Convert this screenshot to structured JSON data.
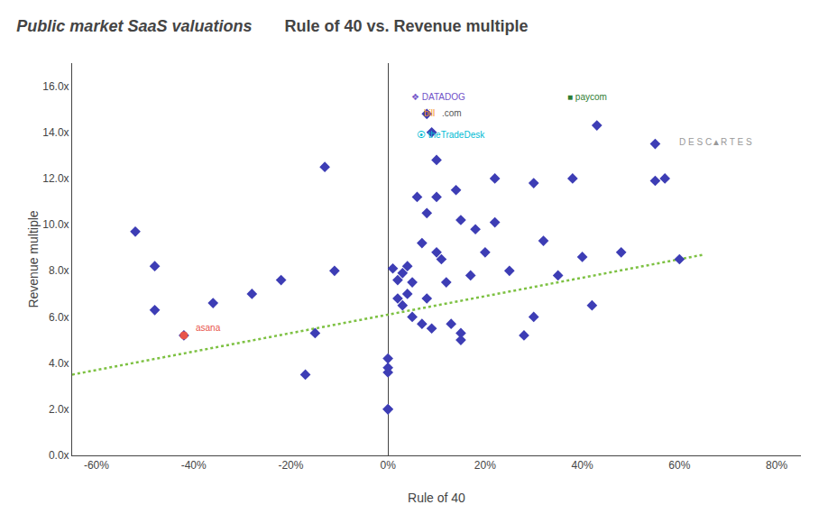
{
  "chart_data": {
    "type": "scatter",
    "title": "Public market SaaS valuations",
    "subtitle": "Rule of 40 vs. Revenue multiple",
    "xlabel": "Rule of 40",
    "ylabel": "Revenue multiple",
    "xlim": [
      -0.65,
      0.85
    ],
    "ylim": [
      0,
      17
    ],
    "xticks": [
      {
        "value": -0.6,
        "label": "-60%"
      },
      {
        "value": -0.4,
        "label": "-40%"
      },
      {
        "value": -0.2,
        "label": "-20%"
      },
      {
        "value": 0.0,
        "label": "0%"
      },
      {
        "value": 0.2,
        "label": "20%"
      },
      {
        "value": 0.4,
        "label": "40%"
      },
      {
        "value": 0.6,
        "label": "60%"
      },
      {
        "value": 0.8,
        "label": "80%"
      }
    ],
    "yticks": [
      {
        "value": 0,
        "label": "0.0x"
      },
      {
        "value": 2,
        "label": "2.0x"
      },
      {
        "value": 4,
        "label": "4.0x"
      },
      {
        "value": 6,
        "label": "6.0x"
      },
      {
        "value": 8,
        "label": "8.0x"
      },
      {
        "value": 10,
        "label": "10.0x"
      },
      {
        "value": 12,
        "label": "12.0x"
      },
      {
        "value": 14,
        "label": "14.0x"
      },
      {
        "value": 16,
        "label": "16.0x"
      }
    ],
    "grid": false,
    "series": [
      {
        "type": "scatter",
        "color": "#3d3db5",
        "marker": "diamond",
        "x": [
          -0.52,
          -0.48,
          -0.48,
          -0.42,
          -0.36,
          -0.28,
          -0.22,
          -0.17,
          -0.15,
          -0.13,
          -0.11,
          0.0,
          0.0,
          0.0,
          0.0,
          0.0,
          0.01,
          0.02,
          0.02,
          0.03,
          0.03,
          0.04,
          0.04,
          0.05,
          0.05,
          0.06,
          0.07,
          0.07,
          0.08,
          0.08,
          0.08,
          0.09,
          0.09,
          0.1,
          0.1,
          0.1,
          0.11,
          0.12,
          0.13,
          0.14,
          0.15,
          0.15,
          0.15,
          0.17,
          0.18,
          0.2,
          0.22,
          0.22,
          0.25,
          0.28,
          0.3,
          0.3,
          0.32,
          0.35,
          0.38,
          0.4,
          0.42,
          0.43,
          0.48,
          0.55,
          0.55,
          0.57,
          0.6
        ],
        "values": [
          9.7,
          6.3,
          8.2,
          5.2,
          6.6,
          7.0,
          7.6,
          3.5,
          5.3,
          12.5,
          8.0,
          3.8,
          2.0,
          2.0,
          3.6,
          4.2,
          8.1,
          7.6,
          6.8,
          7.9,
          6.5,
          7.0,
          8.2,
          7.5,
          6.0,
          11.2,
          5.7,
          9.2,
          10.5,
          6.8,
          14.8,
          5.5,
          14.0,
          12.8,
          8.8,
          11.2,
          8.5,
          7.5,
          5.7,
          11.5,
          5.3,
          10.2,
          5.0,
          7.8,
          9.8,
          8.8,
          12.0,
          10.1,
          8.0,
          5.2,
          11.8,
          6.0,
          9.3,
          7.8,
          12.0,
          8.6,
          6.5,
          14.3,
          8.8,
          13.5,
          11.9,
          12.0,
          8.5
        ]
      },
      {
        "type": "scatter",
        "color": "#e8534a",
        "marker": "circle",
        "x": [
          -0.42
        ],
        "values": [
          5.2
        ]
      },
      {
        "type": "line",
        "color": "#7dc142",
        "line_style": "dotted",
        "x": [
          -0.65,
          0.65
        ],
        "values": [
          3.5,
          8.7
        ]
      }
    ],
    "annotations": [
      {
        "text": "❖ DATADOG",
        "x": 0.045,
        "y": 15.25,
        "color": "#7052c8"
      },
      {
        "text": "bill",
        "x": 0.07,
        "y": 14.55,
        "color": "#f7941d"
      },
      {
        "text": ".com",
        "x": 0.107,
        "y": 14.55,
        "color": "#555555"
      },
      {
        "text": "■ paycom",
        "x": 0.365,
        "y": 15.25,
        "color": "#2e7d32"
      },
      {
        "text": "⦿ theTradeDesk",
        "x": 0.055,
        "y": 13.6,
        "color": "#00bcd4"
      },
      {
        "text": "D E S C▲R T E S",
        "x": 0.595,
        "y": 13.3,
        "color": "#999999"
      },
      {
        "text": "asana",
        "x": -0.4,
        "y": 5.25,
        "color": "#e8534a"
      }
    ]
  }
}
